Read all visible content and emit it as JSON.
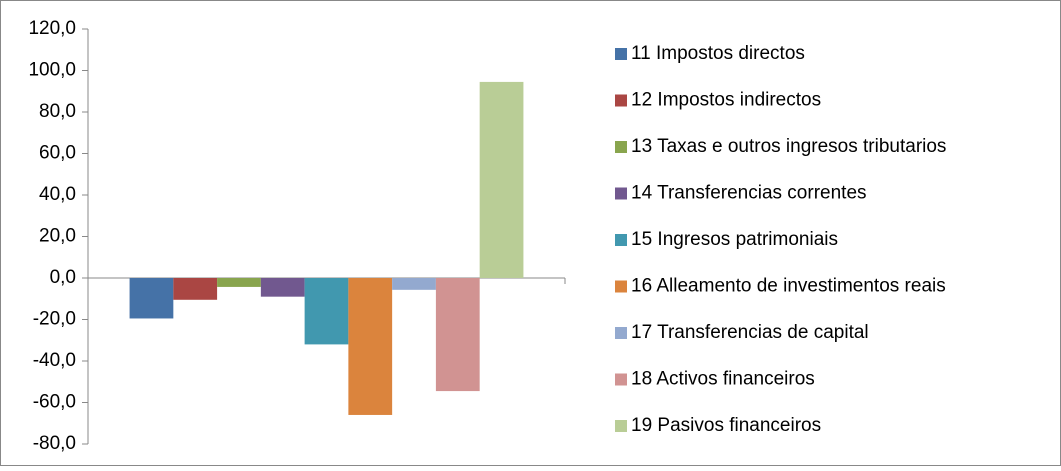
{
  "chart_data": {
    "type": "bar",
    "series": [
      {
        "name": "11 Impostos directos",
        "color": "#4572a7",
        "values": [
          -19.5
        ]
      },
      {
        "name": "12 Impostos indirectos",
        "color": "#aa4643",
        "values": [
          -10.5
        ]
      },
      {
        "name": "13 Taxas e outros ingresos tributarios",
        "color": "#89a54e",
        "values": [
          -4.3
        ]
      },
      {
        "name": "14 Transferencias correntes",
        "color": "#71588f",
        "values": [
          -9
        ]
      },
      {
        "name": "15 Ingresos patrimoniais",
        "color": "#4198af",
        "values": [
          -32
        ]
      },
      {
        "name": "16 Alleamento de investimentos reais",
        "color": "#db843d",
        "values": [
          -66
        ]
      },
      {
        "name": "17 Transferencias de capital",
        "color": "#93a9cf",
        "values": [
          -5.7
        ]
      },
      {
        "name": "18 Activos financeiros",
        "color": "#d19392",
        "values": [
          -54.5
        ]
      },
      {
        "name": "19 Pasivos financeiros",
        "color": "#b9cd96",
        "values": [
          94.5
        ]
      }
    ],
    "ylim": [
      -80,
      120
    ],
    "yticks": [
      {
        "value": -80,
        "label": "-80,0"
      },
      {
        "value": -60,
        "label": "-60,0"
      },
      {
        "value": -40,
        "label": "-40,0"
      },
      {
        "value": -20,
        "label": "-20,0"
      },
      {
        "value": 0,
        "label": "0,0"
      },
      {
        "value": 20,
        "label": "20,0"
      },
      {
        "value": 40,
        "label": "40,0"
      },
      {
        "value": 60,
        "label": "60,0"
      },
      {
        "value": 80,
        "label": "80,0"
      },
      {
        "value": 100,
        "label": "100,0"
      },
      {
        "value": 120,
        "label": "120,0"
      }
    ],
    "legend": "right"
  }
}
